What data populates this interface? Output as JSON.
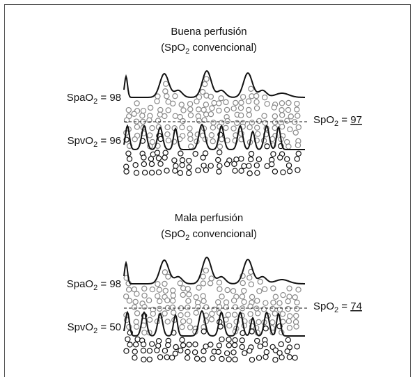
{
  "panels": [
    {
      "title": "Buena perfusión",
      "subtitle": {
        "before": "(SpO",
        "sub": "2",
        "after": " convencional)"
      },
      "arterial": {
        "prefix": "SpaO",
        "sub": "2",
        "eq": " = ",
        "value": 98
      },
      "venous": {
        "prefix": "SpvO",
        "sub": "2",
        "eq": " = ",
        "value": 96
      },
      "reading": {
        "prefix": "SpO",
        "sub": "2",
        "eq": " = ",
        "value": 97
      }
    },
    {
      "title": "Mala perfusión",
      "subtitle": {
        "before": "(SpO",
        "sub": "2",
        "after": " convencional)"
      },
      "arterial": {
        "prefix": "SpaO",
        "sub": "2",
        "eq": " = ",
        "value": 98
      },
      "venous": {
        "prefix": "SpvO",
        "sub": "2",
        "eq": " = ",
        "value": 50
      },
      "reading": {
        "prefix": "SpO",
        "sub": "2",
        "eq": " = ",
        "value": 74
      }
    }
  ]
}
